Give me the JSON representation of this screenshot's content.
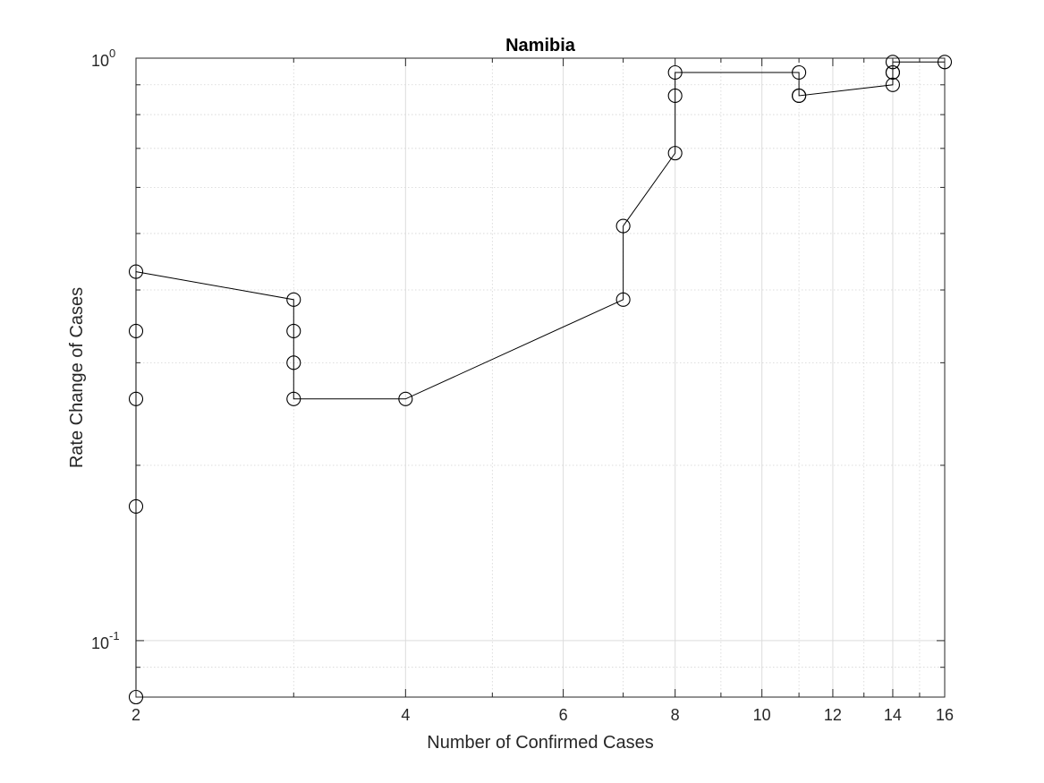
{
  "chart_data": {
    "type": "scatter",
    "title": "Namibia",
    "xlabel": "Number of Confirmed Cases",
    "ylabel": "Rate Change of Cases",
    "xscale": "log",
    "yscale": "log",
    "xlim": [
      2,
      16
    ],
    "ylim": [
      0.08,
      1.0
    ],
    "x_ticks": [
      2,
      4,
      6,
      8,
      10,
      12,
      14,
      16
    ],
    "x_tick_labels": [
      "2",
      "4",
      "6",
      "8",
      "10",
      "12",
      "14",
      "16"
    ],
    "y_ticks": [
      0.1,
      1.0
    ],
    "y_tick_labels": [
      {
        "base": "10",
        "exp": "-1"
      },
      {
        "base": "10",
        "exp": "0"
      }
    ],
    "grid": true,
    "minor_grid": true,
    "marker": "circle",
    "line_color": "#000000",
    "series": [
      {
        "x": [
          2,
          2,
          2,
          2,
          2,
          3,
          3,
          3,
          3,
          4,
          7,
          7,
          8,
          8,
          8,
          11,
          11,
          11,
          14,
          14,
          14,
          14,
          16
        ],
        "y": [
          0.08,
          0.17,
          0.26,
          0.34,
          0.43,
          0.385,
          0.34,
          0.3,
          0.26,
          0.26,
          0.385,
          0.515,
          0.687,
          0.862,
          0.945,
          0.945,
          0.862,
          0.862,
          0.9,
          0.945,
          0.945,
          0.985,
          0.985
        ]
      }
    ]
  }
}
